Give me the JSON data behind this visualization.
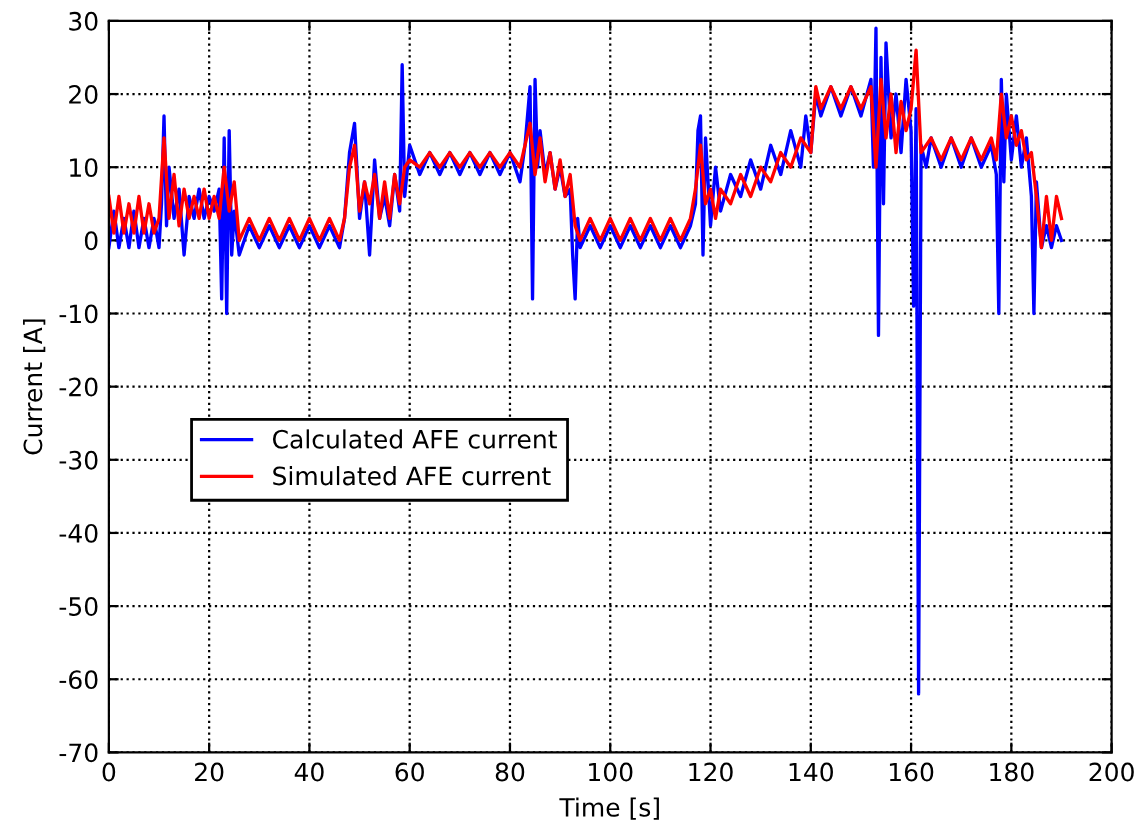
{
  "chart_data": {
    "type": "line",
    "xlabel": "Time [s]",
    "ylabel": "Current [A]",
    "xlim": [
      0,
      200
    ],
    "xticks": [
      0,
      20,
      40,
      60,
      80,
      100,
      120,
      140,
      160,
      180,
      200
    ],
    "ylim": [
      -70,
      30
    ],
    "yticks": [
      -70,
      -60,
      -50,
      -40,
      -30,
      -20,
      -10,
      0,
      10,
      20,
      30
    ],
    "grid": true,
    "line_style": "solid",
    "legend": "left",
    "series": [
      {
        "name": "Calculated AFE current",
        "color": "#0000ff",
        "x": [
          0,
          1,
          2,
          3,
          4,
          5,
          6,
          7,
          8,
          9,
          10,
          10.5,
          11,
          11.5,
          12,
          13,
          14,
          15,
          16,
          17,
          18,
          19,
          20,
          21,
          22,
          22.5,
          23,
          23.5,
          24,
          24.5,
          25,
          26,
          28,
          30,
          32,
          34,
          36,
          38,
          40,
          42,
          44,
          46,
          47,
          48,
          49,
          50,
          51,
          52,
          53,
          54,
          55,
          56,
          57,
          58,
          58.5,
          59,
          60,
          62,
          64,
          66,
          68,
          70,
          72,
          74,
          76,
          78,
          80,
          82,
          83,
          84,
          84.5,
          85,
          85.5,
          86,
          87,
          88,
          89,
          90,
          91,
          92,
          92.5,
          93,
          93.5,
          94,
          96,
          98,
          100,
          102,
          104,
          106,
          108,
          110,
          112,
          114,
          116,
          117,
          117.5,
          118,
          118.5,
          119,
          120,
          121,
          122,
          124,
          126,
          128,
          130,
          132,
          134,
          136,
          138,
          139,
          140,
          141,
          142,
          144,
          146,
          148,
          150,
          152,
          152.5,
          153,
          153.5,
          154,
          154.5,
          155,
          156,
          157,
          158,
          159,
          160,
          160.5,
          161,
          161.5,
          162,
          163,
          164,
          166,
          168,
          170,
          172,
          174,
          176,
          177,
          177.5,
          178,
          178.5,
          179,
          180,
          181,
          182,
          183,
          184,
          184.5,
          185,
          186,
          187,
          188,
          189,
          190
        ],
        "values": [
          -1,
          4,
          -1,
          3,
          -1,
          4,
          -1,
          3,
          -1,
          3,
          -1,
          5,
          17,
          2,
          10,
          3,
          7,
          -2,
          6,
          3,
          7,
          3,
          6,
          4,
          7,
          -8,
          14,
          -10,
          15,
          -2,
          4,
          -2,
          2,
          -1,
          2,
          -1,
          2,
          -1,
          2,
          -1,
          2,
          -1,
          3,
          12,
          16,
          3,
          8,
          -2,
          11,
          3,
          6,
          2,
          9,
          4,
          24,
          6,
          13,
          9,
          12,
          9,
          12,
          9,
          12,
          9,
          12,
          9,
          12,
          8,
          13,
          21,
          -8,
          22,
          10,
          15,
          9,
          12,
          7,
          10,
          6,
          7,
          -2,
          -8,
          3,
          -1,
          2,
          -1,
          2,
          -1,
          2,
          -1,
          2,
          -1,
          2,
          -1,
          2,
          5,
          15,
          17,
          -2,
          14,
          2,
          10,
          4,
          9,
          6,
          11,
          7,
          13,
          9,
          15,
          10,
          17,
          12,
          20,
          17,
          21,
          17,
          21,
          17,
          22,
          10,
          29,
          -13,
          25,
          5,
          27,
          14,
          20,
          12,
          22,
          15,
          -9,
          18,
          -62,
          13,
          10,
          14,
          10,
          14,
          10,
          14,
          10,
          13,
          9,
          -10,
          22,
          8,
          20,
          11,
          17,
          10,
          14,
          6,
          -10,
          8,
          -1,
          2,
          -1,
          2,
          0
        ]
      },
      {
        "name": "Simulated AFE current",
        "color": "#ff0000",
        "x": [
          0,
          1,
          2,
          3,
          4,
          5,
          6,
          7,
          8,
          9,
          10,
          11,
          12,
          13,
          14,
          15,
          16,
          17,
          18,
          19,
          20,
          21,
          22,
          23,
          24,
          25,
          26,
          28,
          30,
          32,
          34,
          36,
          38,
          40,
          42,
          44,
          46,
          47,
          48,
          49,
          50,
          51,
          52,
          53,
          54,
          55,
          56,
          57,
          58,
          59,
          60,
          62,
          64,
          66,
          68,
          70,
          72,
          74,
          76,
          78,
          80,
          82,
          84,
          85,
          86,
          87,
          88,
          89,
          90,
          91,
          92,
          93,
          94,
          96,
          98,
          100,
          102,
          104,
          106,
          108,
          110,
          112,
          114,
          116,
          117,
          118,
          119,
          120,
          121,
          122,
          124,
          126,
          128,
          130,
          132,
          134,
          136,
          138,
          140,
          141,
          142,
          144,
          146,
          148,
          150,
          152,
          153,
          154,
          155,
          156,
          157,
          158,
          159,
          160,
          161,
          162,
          164,
          166,
          168,
          170,
          172,
          174,
          176,
          177,
          178,
          179,
          180,
          181,
          182,
          183,
          184,
          185,
          186,
          187,
          188,
          189,
          190
        ],
        "values": [
          6,
          1,
          6,
          1,
          5,
          1,
          6,
          1,
          5,
          1,
          3,
          14,
          3,
          9,
          2,
          7,
          3,
          6,
          3,
          7,
          3,
          6,
          3,
          10,
          4,
          8,
          0,
          3,
          0,
          3,
          0,
          3,
          0,
          3,
          0,
          3,
          0,
          3,
          10,
          13,
          4,
          8,
          5,
          9,
          3,
          8,
          3,
          9,
          5,
          10,
          11,
          10,
          12,
          10,
          12,
          10,
          12,
          10,
          12,
          10,
          12,
          10,
          16,
          9,
          14,
          8,
          12,
          7,
          11,
          6,
          9,
          2,
          0,
          3,
          0,
          3,
          0,
          3,
          0,
          3,
          0,
          3,
          0,
          3,
          7,
          13,
          5,
          7,
          3,
          7,
          5,
          9,
          6,
          10,
          8,
          12,
          10,
          14,
          12,
          21,
          18,
          21,
          18,
          21,
          18,
          21,
          10,
          22,
          14,
          20,
          12,
          19,
          15,
          18,
          26,
          12,
          14,
          11,
          14,
          11,
          14,
          11,
          14,
          11,
          20,
          14,
          17,
          13,
          15,
          11,
          12,
          6,
          -1,
          6,
          0,
          6,
          3
        ]
      }
    ]
  }
}
